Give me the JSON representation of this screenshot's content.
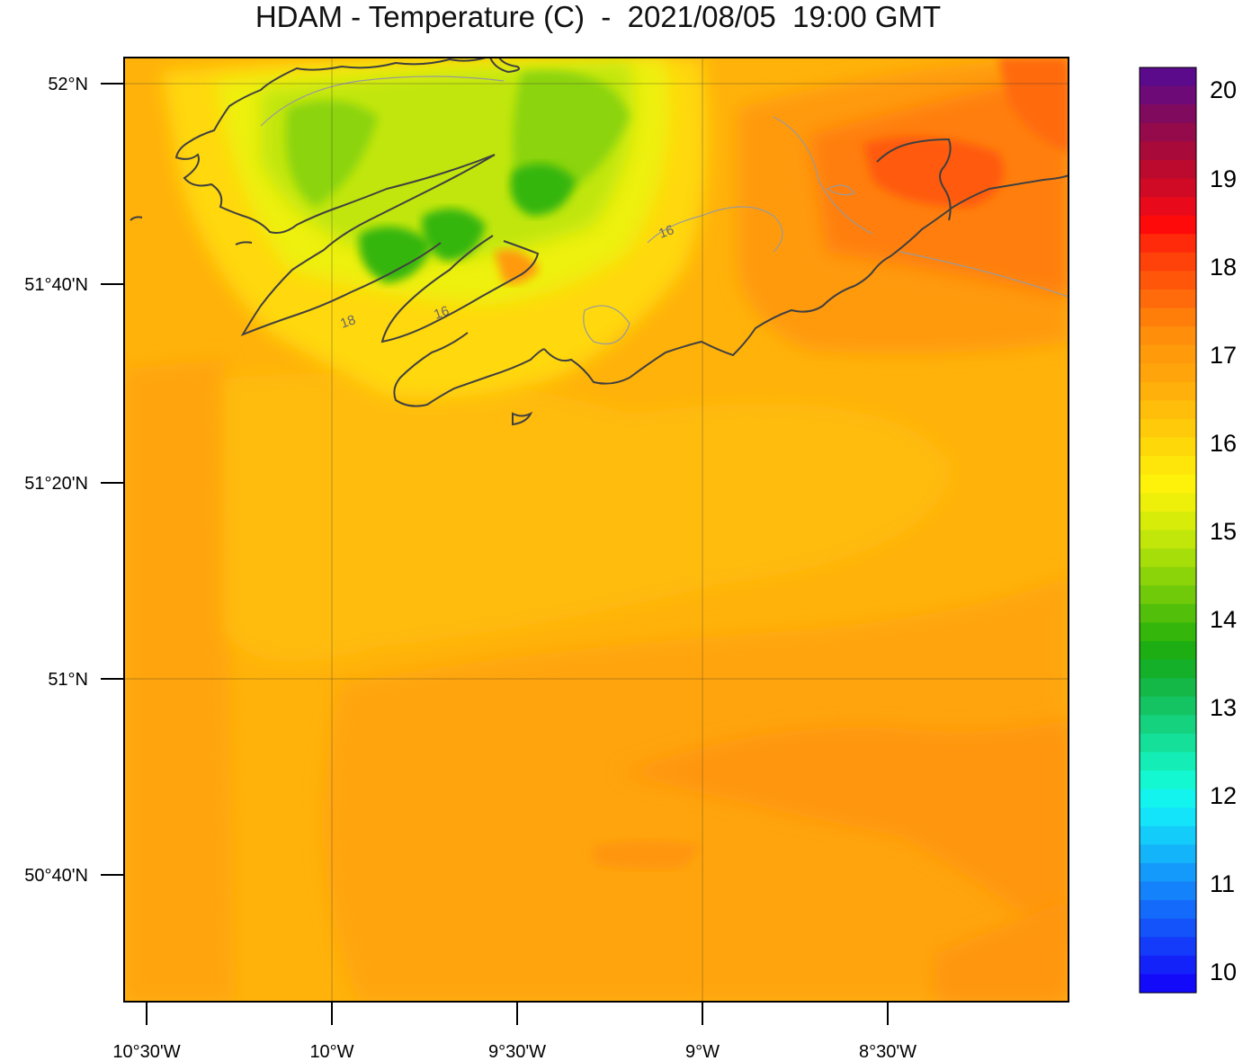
{
  "title": "HDAM - Temperature (C)  -  2021/08/05  19:00 GMT",
  "latitude_labels": [
    "52°N",
    "51°40'N",
    "51°20'N",
    "51°N",
    "50°40'N"
  ],
  "longitude_labels": [
    "10°30'W",
    "10°W",
    "9°30'W",
    "9°W",
    "8°30'W"
  ],
  "colorbar": {
    "labels": [
      "20",
      "19",
      "18",
      "17",
      "16",
      "15",
      "14",
      "13",
      "12",
      "11",
      "10"
    ],
    "colors_top_to_bottom": [
      "#5a0a8a",
      "#6e0a78",
      "#800a5e",
      "#940a4a",
      "#a80a3a",
      "#bc0a2e",
      "#d00a24",
      "#e80a1a",
      "#ff0a0a",
      "#ff2a0a",
      "#ff420a",
      "#ff560a",
      "#ff6a0a",
      "#ff7e0a",
      "#ff8e0a",
      "#ff9a0a",
      "#ffa40a",
      "#ffb00a",
      "#ffbe0a",
      "#ffca0a",
      "#ffd80a",
      "#ffe60a",
      "#fff20a",
      "#eef00a",
      "#d8ec0a",
      "#c0e60a",
      "#a6de0a",
      "#8cd40a",
      "#70ca0a",
      "#52c00a",
      "#34b60a",
      "#1cae12",
      "#14b02a",
      "#14b846",
      "#14c462",
      "#14d27e",
      "#14e09a",
      "#14eeb6",
      "#14f8d2",
      "#14f4ee",
      "#14e4fa",
      "#14ccfa",
      "#14b4fa",
      "#149afa",
      "#1482fa",
      "#146afa",
      "#1452fa",
      "#143afa",
      "#1422fa",
      "#140afa"
    ]
  },
  "contour_labels": [
    "16",
    "16",
    "18"
  ],
  "map_colors": {
    "sea_base": "#ffb20a",
    "warm_band": "#ff9e0a",
    "hot_core": "#ff6a0a",
    "cool_land": "#d8ec0a",
    "green_land": "#70ca0a",
    "yellow_land": "#ffe60a",
    "coastline": "#404040"
  }
}
